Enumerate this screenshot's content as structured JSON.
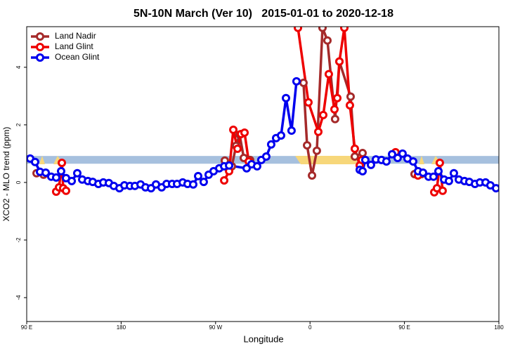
{
  "chart_data": {
    "type": "line",
    "title": "5N-10N March (Ver 10)   2015-01-01 to 2020-12-18",
    "xlabel": "Longitude",
    "ylabel": "XCO2 - MLO trend (ppm)",
    "xlim": [
      90,
      540
    ],
    "xticks": [
      {
        "value": 90,
        "label": "90 E"
      },
      180,
      {
        "value": 270,
        "label": "90 W"
      },
      {
        "value": 360,
        "label": "0"
      },
      {
        "value": 450,
        "label": "90 E"
      },
      180
    ],
    "ylim": [
      -4.83,
      5.41
    ],
    "yticks": [
      -4,
      -2,
      0,
      2,
      4
    ],
    "band": [
      0.65,
      0.92
    ],
    "band_color": "#a6c0de",
    "legend": "upper left",
    "series": [
      {
        "name": "Land Nadir",
        "color": "#a52a2a",
        "x": [
          99.4,
          106.1,
          null,
          278.8,
          285.5,
          289.5,
          292.9,
          296.9,
          302.9,
          null,
          353.8,
          357.2,
          361.9,
          366.5,
          371.9,
          376.6,
          383.9,
          388.0,
          398.7,
          402.7,
          410.1,
          null,
          459.6,
          466.3
        ],
        "values": [
          0.32,
          0.27,
          null,
          0.76,
          0.56,
          1.27,
          1.66,
          0.85,
          0.78,
          null,
          3.46,
          1.29,
          0.24,
          1.1,
          5.37,
          4.93,
          2.2,
          4.2,
          2.98,
          0.9,
          1.02,
          null,
          0.29,
          0.29
        ]
      },
      {
        "name": "Land Glint",
        "color": "#ee0000",
        "x": [
          118.1,
          120.8,
          123.5,
          124.8,
          127.5,
          null,
          278.2,
          282.9,
          286.9,
          290.9,
          294.2,
          297.6,
          301.6,
          null,
          348.5,
          358.5,
          367.9,
          372.6,
          377.9,
          383.3,
          386.0,
          388.0,
          392.7,
          398.0,
          402.7,
          407.4,
          409.4,
          null,
          441.5,
          null,
          462.9,
          null,
          478.4,
          481.0,
          483.7,
          486.4
        ],
        "values": [
          -0.32,
          -0.17,
          0.68,
          -0.2,
          -0.29,
          null,
          0.07,
          0.39,
          1.83,
          1.17,
          1.68,
          1.73,
          0.73,
          null,
          5.37,
          2.78,
          1.76,
          2.34,
          3.76,
          2.54,
          2.93,
          4.2,
          5.37,
          2.68,
          1.17,
          0.59,
          0.78,
          null,
          1.05,
          null,
          0.24,
          null,
          -0.34,
          -0.2,
          0.68,
          -0.29
        ]
      },
      {
        "name": "Ocean Glint",
        "color": "#0000ee",
        "x": [
          93.3,
          98.0,
          102.7,
          108.1,
          113.4,
          118.1,
          122.8,
          127.5,
          132.9,
          138.2,
          142.9,
          148.3,
          152.9,
          158.3,
          163.0,
          168.3,
          173.0,
          178.4,
          183.1,
          188.4,
          193.1,
          198.5,
          203.2,
          208.5,
          213.2,
          218.6,
          223.3,
          228.6,
          233.3,
          238.7,
          243.3,
          248.7,
          253.4,
          258.7,
          263.4,
          268.1,
          273.5,
          278.2,
          282.9,
          299.6,
          304.3,
          309.6,
          313.6,
          318.3,
          323.0,
          327.7,
          332.4,
          337.1,
          342.4,
          347.1,
          null,
          407.4,
          410.1,
          412.7,
          418.1,
          422.8,
          428.1,
          432.8,
          438.2,
          443.5,
          448.2,
          452.9,
          458.3,
          463.0,
          467.7,
          473.0,
          477.7,
          482.4,
          487.8,
          492.4,
          497.1,
          501.8,
          507.2,
          511.8,
          517.2,
          521.9,
          527.3,
          531.9,
          537.3
        ],
        "values": [
          0.83,
          0.71,
          0.37,
          0.34,
          0.2,
          0.17,
          0.39,
          0.15,
          0.05,
          0.32,
          0.1,
          0.05,
          0.02,
          -0.05,
          0,
          -0.02,
          -0.12,
          -0.2,
          -0.1,
          -0.12,
          -0.12,
          -0.07,
          -0.17,
          -0.2,
          -0.07,
          -0.17,
          -0.05,
          -0.05,
          -0.05,
          0,
          -0.05,
          -0.07,
          0.22,
          0.02,
          0.27,
          0.39,
          0.49,
          0.56,
          0.59,
          0.49,
          0.63,
          0.56,
          0.78,
          0.9,
          1.32,
          1.54,
          1.63,
          2.93,
          1.8,
          3.51,
          null,
          0.44,
          0.39,
          0.78,
          0.61,
          0.8,
          0.78,
          0.73,
          0.98,
          0.85,
          1.0,
          0.83,
          0.73,
          0.39,
          0.34,
          0.2,
          0.2,
          0.39,
          0.1,
          0.05,
          0.32,
          0.1,
          0.05,
          0.02,
          -0.05,
          0,
          0,
          -0.1,
          -0.2
        ]
      }
    ]
  }
}
